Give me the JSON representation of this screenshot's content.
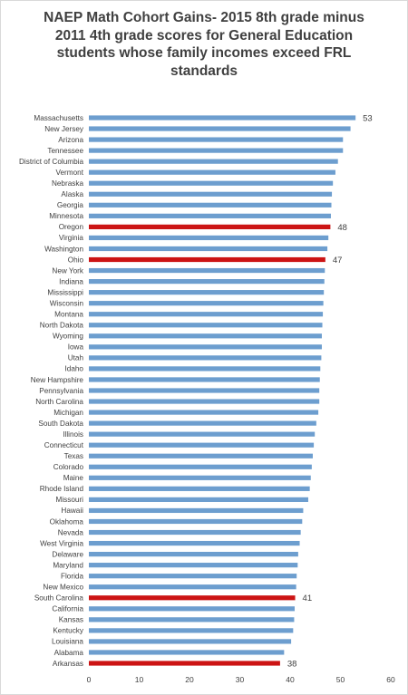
{
  "chart_data": {
    "type": "bar",
    "orientation": "horizontal",
    "title_lines": [
      "NAEP Math Cohort Gains- 2015 8th grade minus",
      "2011 4th grade scores for General Education",
      "students whose family incomes exceed FRL",
      "standards"
    ],
    "xlim": [
      0,
      60
    ],
    "xticks": [
      0,
      10,
      20,
      30,
      40,
      50,
      60
    ],
    "grid": false,
    "legend": "none",
    "colors": {
      "default": "#6d9ecf",
      "highlight": "#cc1414",
      "text": "#404040"
    },
    "bars": [
      {
        "category": "Massachusetts",
        "value": 53,
        "label": "53"
      },
      {
        "category": "New Jersey",
        "value": 52
      },
      {
        "category": "Arizona",
        "value": 50.5
      },
      {
        "category": "Tennessee",
        "value": 50.5
      },
      {
        "category": "District of Columbia",
        "value": 49.5
      },
      {
        "category": "Vermont",
        "value": 49
      },
      {
        "category": "Nebraska",
        "value": 48.5
      },
      {
        "category": "Alaska",
        "value": 48.3
      },
      {
        "category": "Georgia",
        "value": 48.2
      },
      {
        "category": "Minnesota",
        "value": 48.1
      },
      {
        "category": "Oregon",
        "value": 48,
        "label": "48",
        "highlight": true
      },
      {
        "category": "Virginia",
        "value": 47.6
      },
      {
        "category": "Washington",
        "value": 47.4
      },
      {
        "category": "Ohio",
        "value": 47,
        "label": "47",
        "highlight": true
      },
      {
        "category": "New York",
        "value": 46.9
      },
      {
        "category": "Indiana",
        "value": 46.8
      },
      {
        "category": "Mississippi",
        "value": 46.7
      },
      {
        "category": "Wisconsin",
        "value": 46.6
      },
      {
        "category": "Montana",
        "value": 46.5
      },
      {
        "category": "North Dakota",
        "value": 46.4
      },
      {
        "category": "Wyoming",
        "value": 46.3
      },
      {
        "category": "Iowa",
        "value": 46.3
      },
      {
        "category": "Utah",
        "value": 46.2
      },
      {
        "category": "Idaho",
        "value": 46
      },
      {
        "category": "New Hampshire",
        "value": 45.9
      },
      {
        "category": "Pennsylvania",
        "value": 45.8
      },
      {
        "category": "North Carolina",
        "value": 45.8
      },
      {
        "category": "Michigan",
        "value": 45.6
      },
      {
        "category": "South Dakota",
        "value": 45.2
      },
      {
        "category": "Illinois",
        "value": 44.9
      },
      {
        "category": "Connecticut",
        "value": 44.7
      },
      {
        "category": "Texas",
        "value": 44.5
      },
      {
        "category": "Colorado",
        "value": 44.3
      },
      {
        "category": "Maine",
        "value": 44.1
      },
      {
        "category": "Rhode Island",
        "value": 43.9
      },
      {
        "category": "Missouri",
        "value": 43.6
      },
      {
        "category": "Hawaii",
        "value": 42.6
      },
      {
        "category": "Oklahoma",
        "value": 42.4
      },
      {
        "category": "Nevada",
        "value": 42.1
      },
      {
        "category": "West Virginia",
        "value": 41.9
      },
      {
        "category": "Delaware",
        "value": 41.6
      },
      {
        "category": "Maryland",
        "value": 41.5
      },
      {
        "category": "Florida",
        "value": 41.3
      },
      {
        "category": "New Mexico",
        "value": 41.2
      },
      {
        "category": "South Carolina",
        "value": 41,
        "label": "41",
        "highlight": true
      },
      {
        "category": "California",
        "value": 40.9
      },
      {
        "category": "Kansas",
        "value": 40.8
      },
      {
        "category": "Kentucky",
        "value": 40.6
      },
      {
        "category": "Louisiana",
        "value": 40.2
      },
      {
        "category": "Alabama",
        "value": 38.8
      },
      {
        "category": "Arkansas",
        "value": 38,
        "label": "38",
        "highlight": true
      }
    ]
  }
}
